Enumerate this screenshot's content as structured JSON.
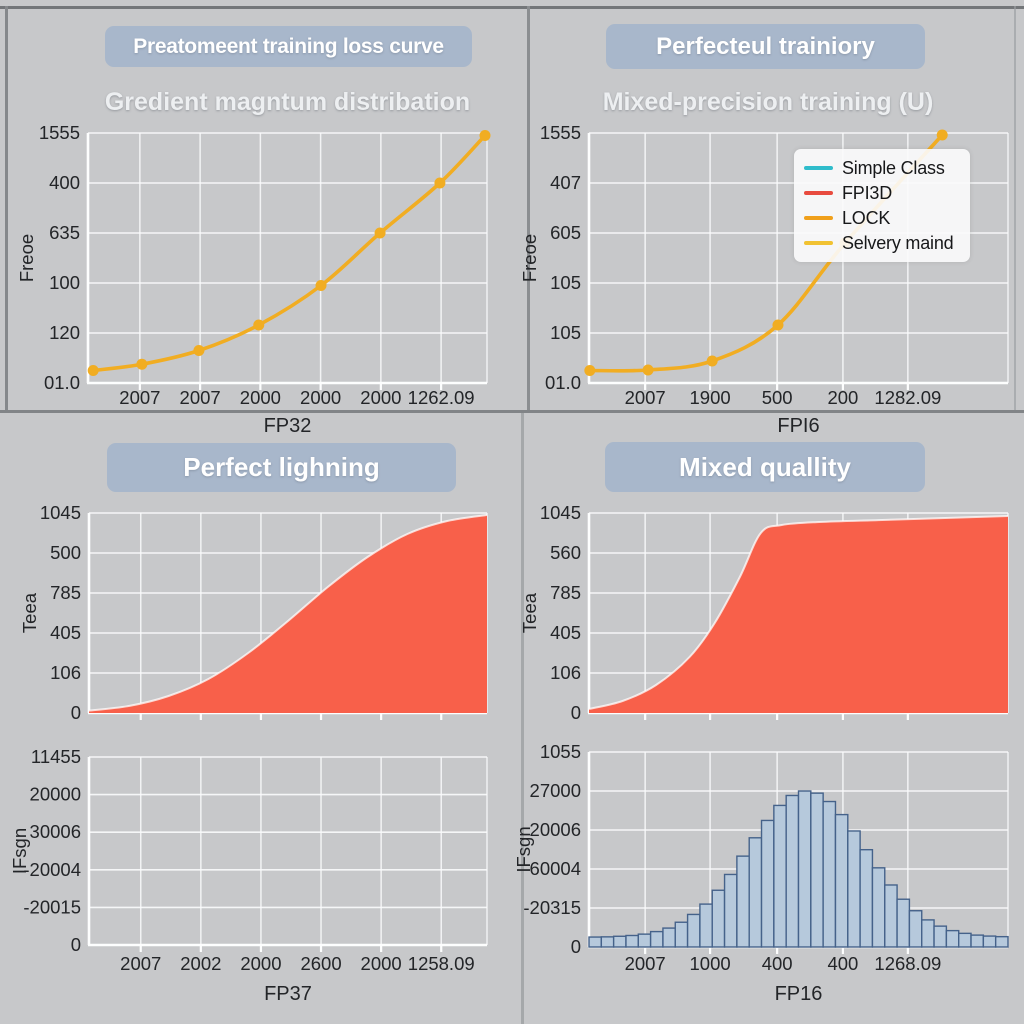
{
  "figure": {
    "background": "#c7c8ca",
    "banner_color": "#a8b7cb",
    "grid_color": "#fafbfc",
    "tick_text_color": "#232528",
    "value_scale": "series values are normalized 0-1 fractions of each plot's axis extents"
  },
  "chart_data": [
    {
      "id": "top_left",
      "type": "line",
      "title": "Preatomeent training loss curve",
      "subtitle": "Gredient magntum distribation",
      "xlabel": "FP32",
      "ylabel": "Freoe",
      "x_tick_labels": [
        "2007",
        "2007",
        "2000",
        "2000",
        "2000",
        "1262.09"
      ],
      "y_tick_labels": [
        "1555",
        "400",
        "635",
        "100",
        "120",
        "01.0"
      ],
      "line_color": "#f1ad22",
      "points": [
        [
          0.013,
          0.05
        ],
        [
          0.135,
          0.075
        ],
        [
          0.278,
          0.13
        ],
        [
          0.428,
          0.232
        ],
        [
          0.584,
          0.39
        ],
        [
          0.732,
          0.6
        ],
        [
          0.882,
          0.8
        ],
        [
          0.995,
          0.99
        ]
      ]
    },
    {
      "id": "top_right",
      "type": "line",
      "title": "Perfecteul trainiory",
      "subtitle": "Mixed-precision training (U)",
      "xlabel": "FPI6",
      "ylabel": "Freoe",
      "x_tick_labels": [
        "2007",
        "1900",
        "500",
        "200",
        "1282.09"
      ],
      "y_tick_labels": [
        "1555",
        "407",
        "605",
        "105",
        "105",
        "01.0"
      ],
      "line_color": "#f1ad22",
      "legend": [
        {
          "label": "Simple Class",
          "color": "#2fbccb"
        },
        {
          "label": "FPI3D",
          "color": "#e84b3f"
        },
        {
          "label": "LOCK",
          "color": "#f0a01b"
        },
        {
          "label": "Selvery maind",
          "color": "#f1c232"
        }
      ],
      "points": [
        [
          0.002,
          0.05
        ],
        [
          0.141,
          0.052
        ],
        [
          0.294,
          0.088
        ],
        [
          0.451,
          0.232
        ],
        [
          0.611,
          0.56
        ],
        [
          0.843,
          0.992
        ]
      ]
    },
    {
      "id": "bottom_left_upper",
      "type": "area",
      "title": "Perfect lighning",
      "ylabel": "Teea",
      "y_tick_labels": [
        "1045",
        "500",
        "785",
        "405",
        "106",
        "0"
      ],
      "fill_color": "#f8604a",
      "points": [
        [
          0,
          0.012
        ],
        [
          0.1,
          0.035
        ],
        [
          0.2,
          0.085
        ],
        [
          0.3,
          0.17
        ],
        [
          0.4,
          0.3
        ],
        [
          0.5,
          0.46
        ],
        [
          0.6,
          0.63
        ],
        [
          0.7,
          0.78
        ],
        [
          0.8,
          0.895
        ],
        [
          0.9,
          0.96
        ],
        [
          1,
          0.99
        ]
      ]
    },
    {
      "id": "bottom_left_lower",
      "type": "empty",
      "xlabel": "FP37",
      "ylabel": "IFsgn",
      "x_tick_labels": [
        "2007",
        "2002",
        "2000",
        "2600",
        "2000",
        "1258.09"
      ],
      "y_tick_labels": [
        "11455",
        "20000",
        "30006",
        "-20004",
        "-20015",
        "0"
      ]
    },
    {
      "id": "bottom_right_upper",
      "type": "area",
      "title": "Mixed quallity",
      "ylabel": "Teea",
      "y_tick_labels": [
        "1045",
        "560",
        "785",
        "405",
        "106",
        "0"
      ],
      "fill_color": "#f8604a",
      "points": [
        [
          0,
          0.02
        ],
        [
          0.08,
          0.06
        ],
        [
          0.16,
          0.14
        ],
        [
          0.24,
          0.28
        ],
        [
          0.3,
          0.45
        ],
        [
          0.36,
          0.68
        ],
        [
          0.41,
          0.9
        ],
        [
          0.46,
          0.94
        ],
        [
          0.55,
          0.955
        ],
        [
          0.7,
          0.965
        ],
        [
          0.85,
          0.975
        ],
        [
          1,
          0.985
        ]
      ]
    },
    {
      "id": "bottom_right_lower",
      "type": "histogram",
      "xlabel": "FP16",
      "ylabel": "IFsgn",
      "x_tick_labels": [
        "2007",
        "1000",
        "400",
        "400",
        "1268.09"
      ],
      "y_tick_labels": [
        "1055",
        "27000",
        "20006",
        "60004",
        "-20315",
        "0"
      ],
      "bar_fill": "#b6c9dc",
      "bar_edge": "#45628a",
      "bar_values": [
        0.051,
        0.052,
        0.055,
        0.059,
        0.066,
        0.079,
        0.097,
        0.127,
        0.167,
        0.22,
        0.291,
        0.372,
        0.466,
        0.56,
        0.649,
        0.726,
        0.777,
        0.8,
        0.789,
        0.746,
        0.679,
        0.595,
        0.499,
        0.406,
        0.318,
        0.245,
        0.186,
        0.139,
        0.107,
        0.084,
        0.07,
        0.061,
        0.056,
        0.053
      ]
    }
  ]
}
